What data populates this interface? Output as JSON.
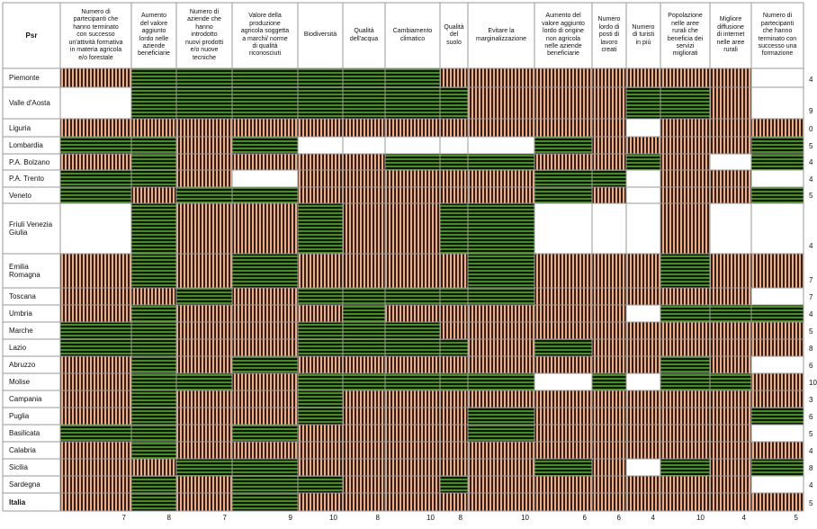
{
  "chart_data": {
    "type": "heatmap",
    "corner_label": "Psr",
    "columns": [
      "Numero di\npartecipanti che\nhanno terminato\ncon successo\nun'attività formativa\nin materia agricola\ne/o forestale",
      "Aumento\ndel valore\naggiunto\nlordo nelle\naziende\nbeneficiarie",
      "Numero di\naziende che\nhanno\nintrodotto\nnuovi prodotti\ne/o nuove\ntecniche",
      "Valore della\nproduzione\nagricola soggetta\na marchi/  norme\ndi qualità\nriconosciuti",
      "Biodiversità",
      "Qualità\ndell'acqua",
      "Cambiamento\nclimatico",
      "Qualità\ndel\nsuolo",
      "Evitare la\nmarginalizzazione",
      "Aumento del\nvalore aggiunto\nlordo di origine\nnon agricola\nnelle aziende\nbeneficiarie",
      "Numero\nlordo di\nposti di\nlavoro\ncreati",
      "Numero\ndi turisti\nin più",
      "Popolazione\nnelle aree\nrurali che\nbeneficia dei\nservizi\nmigliorati",
      "Migliore\ndiffusione\ndi internet\nnelle aree\nrurali",
      "Numero di\npartecipanti\nche hanno\nterminato con\nsuccesso una\nformazione"
    ],
    "column_totals": [
      "7",
      "8",
      "7",
      "9",
      "10",
      "8",
      "10",
      "8",
      "10",
      "6",
      "6",
      "4",
      "10",
      "4",
      "5"
    ],
    "rows": [
      {
        "name": "Piemonte",
        "total": "4",
        "cells": "OGGGGGGOOOOOOOW"
      },
      {
        "name": "Valle d'Aosta",
        "total": "9",
        "cells": "WGGGGGGGOOOGGOW"
      },
      {
        "name": "Liguria",
        "total": "0",
        "cells": "OOOOOOOOOOOWOOO"
      },
      {
        "name": "Lombardia",
        "total": "5",
        "cells": "GGOGWWWWWGOOOOG"
      },
      {
        "name": "P.A. Bolzano",
        "total": "4",
        "cells": "OGOOOOGGGOOGOWG"
      },
      {
        "name": "P.A. Trento",
        "total": "4",
        "cells": "GGOWOOOOOGGWOOW"
      },
      {
        "name": "Veneto",
        "total": "5",
        "cells": "GOGGOOOOOGOWOOG"
      },
      {
        "name": "Friuli Venezia\nGiulia",
        "total": "4",
        "cells": "WGOOGOOGGWWWOWW"
      },
      {
        "name": "Emilia\nRomagna",
        "total": "7",
        "cells": "OGOGOOOOGOOOGOO"
      },
      {
        "name": "Toscana",
        "total": "7",
        "cells": "OOGOGGGGGOOOOOW"
      },
      {
        "name": "Umbria",
        "total": "4",
        "cells": "OGOOOGOOOOOWGGG"
      },
      {
        "name": "Marche",
        "total": "5",
        "cells": "GGOOGGGOOOOOOOO"
      },
      {
        "name": "Lazio",
        "total": "8",
        "cells": "GGOOGGGGOGOOOOO"
      },
      {
        "name": "Abruzzo",
        "total": "6",
        "cells": "OGOGOOOOOOOOGOW"
      },
      {
        "name": "Molise",
        "total": "10",
        "cells": "OGGOGGGGGWGWGGO"
      },
      {
        "name": "Campania",
        "total": "3",
        "cells": "OGOOGOOOOOOOOOO"
      },
      {
        "name": "Puglia",
        "total": "6",
        "cells": "OGOOGOOOGOOOOOG"
      },
      {
        "name": "Basilicata",
        "total": "5",
        "cells": "GGOGOOOOGOOOOOW"
      },
      {
        "name": "Calabria",
        "total": "4",
        "cells": "OGOOOOOOOOOOOOO"
      },
      {
        "name": "Sicilia",
        "total": "8",
        "cells": "OOGGOOOOOGOWGOG"
      },
      {
        "name": "Sardegna",
        "total": "4",
        "cells": "OGOGGOOGOOOOOOW"
      },
      {
        "name": "Italia",
        "total": "5",
        "cells": "OGOGOOOOOOOOOOO"
      }
    ],
    "legend_codes": {
      "G": "green-hatched",
      "O": "orange-hatched",
      "W": "white"
    },
    "colors": {
      "green_line": "#4a8a2a",
      "green_gap": "#0e1a08",
      "orange_line": "#e8b08e",
      "orange_gap": "#3a1d12",
      "white": "#ffffff",
      "grid": "#9a9a9a"
    }
  }
}
